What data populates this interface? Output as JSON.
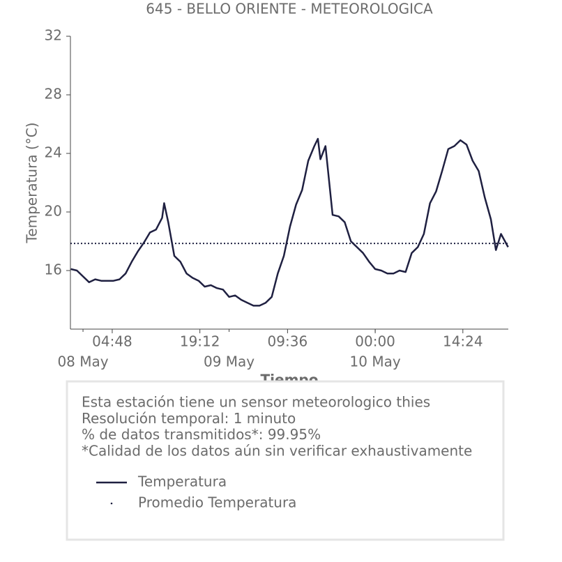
{
  "chart_data": {
    "type": "line",
    "title": "645 - BELLO ORIENTE - METEOROLOGICA",
    "ylabel": "Temperatura (°C)",
    "xlabel": "Tiempo",
    "x": [
      "07 May 22:00",
      "07 May 23:00",
      "08 May 00:00",
      "08 May 01:00",
      "08 May 02:00",
      "08 May 03:00",
      "08 May 04:00",
      "08 May 05:00",
      "08 May 06:00",
      "08 May 07:00",
      "08 May 08:00",
      "08 May 09:00",
      "08 May 10:00",
      "08 May 11:00",
      "08 May 12:00",
      "08 May 13:00",
      "08 May 13:20",
      "08 May 14:00",
      "08 May 15:00",
      "08 May 16:00",
      "08 May 17:00",
      "08 May 18:00",
      "08 May 19:00",
      "08 May 20:00",
      "08 May 21:00",
      "08 May 22:00",
      "08 May 23:00",
      "09 May 00:00",
      "09 May 01:00",
      "09 May 02:00",
      "09 May 03:00",
      "09 May 04:00",
      "09 May 05:00",
      "09 May 06:00",
      "09 May 07:00",
      "09 May 08:00",
      "09 May 09:00",
      "09 May 10:00",
      "09 May 11:00",
      "09 May 12:00",
      "09 May 13:00",
      "09 May 14:00",
      "09 May 14:35",
      "09 May 15:00",
      "09 May 15:50",
      "09 May 17:00",
      "09 May 18:00",
      "09 May 19:00",
      "09 May 20:00",
      "09 May 21:00",
      "09 May 22:00",
      "09 May 23:00",
      "10 May 00:00",
      "10 May 01:00",
      "10 May 02:00",
      "10 May 03:00",
      "10 May 04:00",
      "10 May 05:00",
      "10 May 06:00",
      "10 May 07:00",
      "10 May 08:00",
      "10 May 09:00",
      "10 May 10:00",
      "10 May 11:00",
      "10 May 12:00",
      "10 May 13:00",
      "10 May 14:00",
      "10 May 15:00",
      "10 May 16:00",
      "10 May 17:00",
      "10 May 18:00",
      "10 May 19:00",
      "10 May 19:50",
      "10 May 20:40",
      "10 May 21:50"
    ],
    "series": [
      {
        "name": "Temperatura",
        "color": "#1f2041",
        "values": [
          16.1,
          16.0,
          15.6,
          15.2,
          15.4,
          15.3,
          15.3,
          15.3,
          15.4,
          15.8,
          16.6,
          17.3,
          17.9,
          18.6,
          18.8,
          19.6,
          20.6,
          19.3,
          17.0,
          16.6,
          15.8,
          15.5,
          15.3,
          14.9,
          15.0,
          14.8,
          14.7,
          14.2,
          14.3,
          14.0,
          13.8,
          13.6,
          13.6,
          13.8,
          14.2,
          15.8,
          17.0,
          19.0,
          20.5,
          21.5,
          23.5,
          24.5,
          25.0,
          23.6,
          24.5,
          19.8,
          19.7,
          19.3,
          18.0,
          17.6,
          17.2,
          16.6,
          16.1,
          16.0,
          15.8,
          15.8,
          16.0,
          15.9,
          17.2,
          17.6,
          18.5,
          20.6,
          21.4,
          22.8,
          24.3,
          24.5,
          24.9,
          24.6,
          23.5,
          22.8,
          21.0,
          19.5,
          17.4,
          18.5,
          17.6
        ]
      }
    ],
    "hlines": [
      {
        "name": "Promedio Temperatura",
        "value": 17.85,
        "color": "#1f2041",
        "style": "dotted"
      }
    ],
    "xlim": [
      "07 May 21:56",
      "10 May 21:52"
    ],
    "xticks": [
      {
        "value": "08 May 04:48",
        "label": "04:48"
      },
      {
        "value": "08 May 19:12",
        "label": "19:12"
      },
      {
        "value": "09 May 09:36",
        "label": "09:36"
      },
      {
        "value": "10 May 00:00",
        "label": "00:00"
      },
      {
        "value": "10 May 14:24",
        "label": "14:24"
      }
    ],
    "date_ticks": [
      {
        "value": "08 May 00:00",
        "label": "08 May"
      },
      {
        "value": "09 May 00:00",
        "label": "09 May"
      },
      {
        "value": "10 May 00:00",
        "label": "10 May"
      }
    ],
    "ylim": [
      12,
      32
    ],
    "yticks": [
      16,
      20,
      24,
      28,
      32
    ],
    "notes": [
      "Esta estación tiene un sensor meteorologico thies",
      "Resolución temporal: 1 minuto",
      "% de datos transmitidos*: 99.95%",
      "*Calidad de los datos aún sin verificar exhaustivamente"
    ]
  }
}
